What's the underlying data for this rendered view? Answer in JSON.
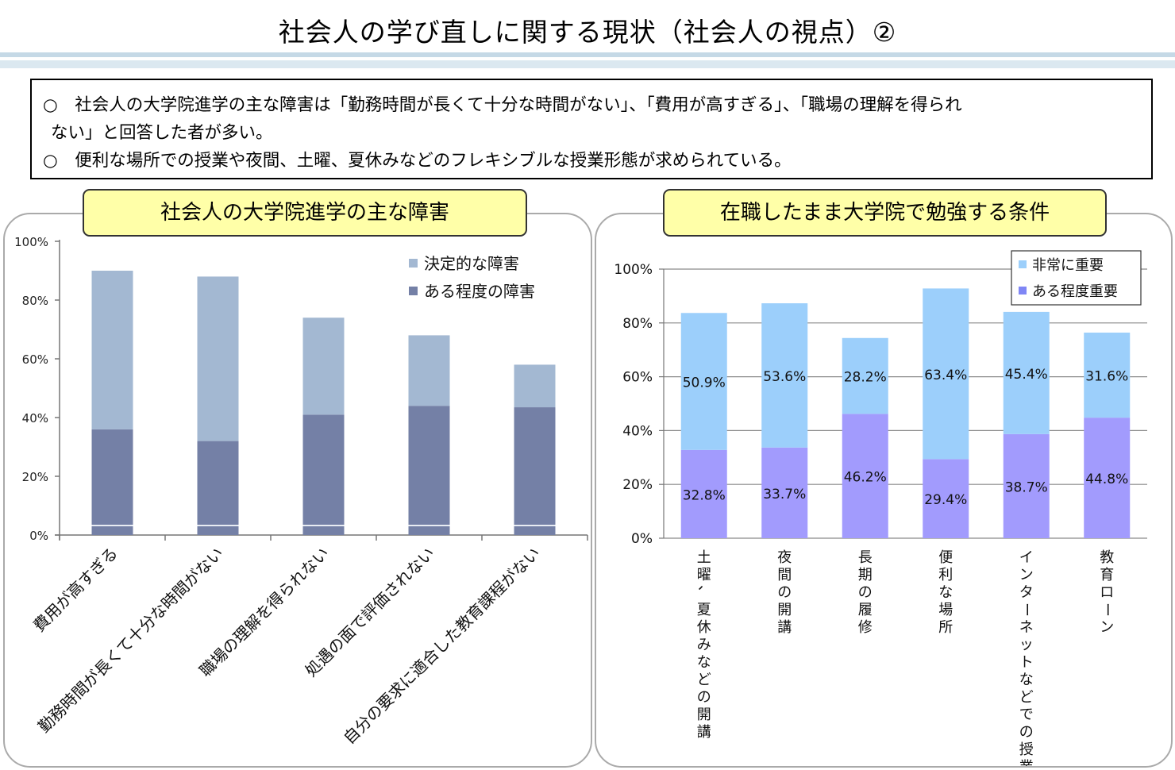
{
  "page": {
    "title": "社会人の学び直しに関する現状（社会人の視点）②",
    "summary": [
      {
        "bullet": "○",
        "text": "社会人の大学院進学の主な障害は「勤務時間が長くて十分な時間がない」、「費用が高すぎる」、「職場の理解を得られ",
        "continuation": "ない」と回答した者が多い。"
      },
      {
        "bullet": "○",
        "text": "便利な場所での授業や夜間、土曜、夏休みなどのフレキシブルな授業形態が求められている。",
        "continuation": ""
      }
    ]
  },
  "chart_data": [
    {
      "type": "bar",
      "stacked": true,
      "title": "社会人の大学院進学の主な障害",
      "categories": [
        "費用が高すぎる",
        "勤務時間が長くて十分な時間がない",
        "職場の理解を得られない",
        "処遇の面で評価されない",
        "自分の要求に適合した教育課程がない"
      ],
      "series": [
        {
          "name": "ある程度の障害",
          "values": [
            36,
            32,
            41,
            44,
            43.5
          ],
          "color": "#7480a6"
        },
        {
          "name": "決定的な障害",
          "values": [
            54,
            56,
            33,
            24,
            14.5
          ],
          "color": "#a3b8d2"
        }
      ],
      "yticks": [
        "0%",
        "20%",
        "40%",
        "60%",
        "80%",
        "100%"
      ],
      "ylim": [
        0,
        100
      ],
      "grid": false,
      "legend_position": "top-right"
    },
    {
      "type": "bar",
      "stacked": true,
      "title": "在職したまま大学院で勉強する条件",
      "categories": [
        "土曜、夏休みなどの開講",
        "夜間の開講",
        "長期の履修",
        "便利な場所",
        "インターネットなどでの授業",
        "教育ローン"
      ],
      "series": [
        {
          "name": "ある程度重要",
          "values": [
            32.8,
            33.7,
            46.2,
            29.4,
            38.7,
            44.8
          ],
          "labels": [
            "32.8%",
            "33.7%",
            "46.2%",
            "29.4%",
            "38.7%",
            "44.8%"
          ],
          "color": "#a29bfd"
        },
        {
          "name": "非常に重要",
          "values": [
            50.9,
            53.6,
            28.2,
            63.4,
            45.4,
            31.6
          ],
          "labels": [
            "50.9%",
            "53.6%",
            "28.2%",
            "63.4%",
            "45.4%",
            "31.6%"
          ],
          "color": "#9ccffb"
        }
      ],
      "legend_colors": [
        "#9ccffb",
        "#7f86f5"
      ],
      "yticks": [
        "0%",
        "20%",
        "40%",
        "60%",
        "80%",
        "100%"
      ],
      "ylim": [
        0,
        100
      ],
      "grid": true,
      "legend_position": "top-right"
    }
  ]
}
